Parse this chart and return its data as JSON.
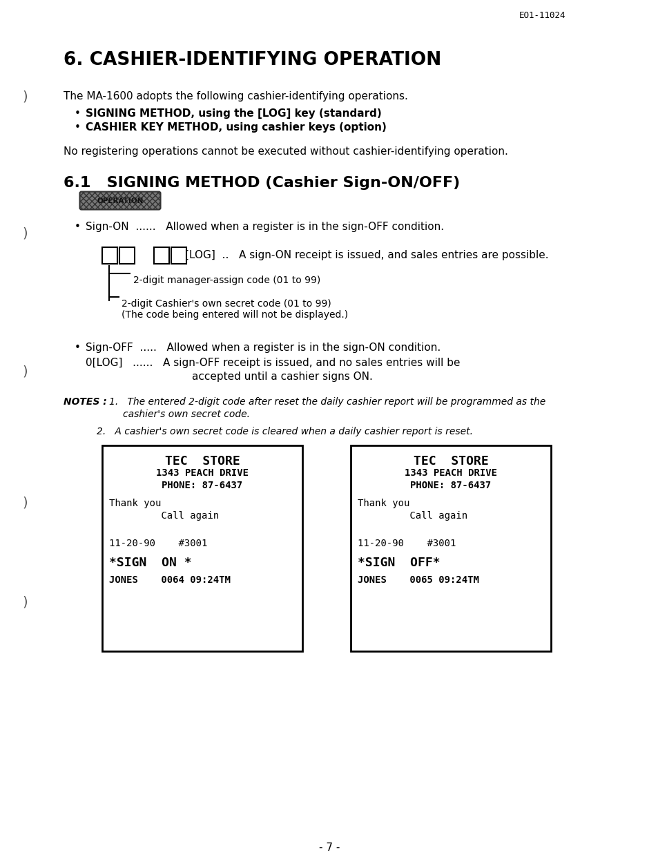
{
  "page_id": "EO1-11024",
  "bg_color": "#ffffff",
  "title": "6. CASHIER-IDENTIFYING OPERATION",
  "intro": "The MA-1600 adopts the following cashier-identifying operations.",
  "bullet1": "SIGNING METHOD, using the [LOG] key (standard)",
  "bullet2": "CASHIER KEY METHOD, using cashier keys (option)",
  "no_reg": "No registering operations cannot be executed without cashier-identifying operation.",
  "section": "6.1   SIGNING METHOD (Cashier Sign-ON/OFF)",
  "sign_on_text": "Sign-ON  ......   Allowed when a register is in the sign-OFF condition.",
  "log_text": "[LOG]  ..   A sign-ON receipt is issued, and sales entries are possible.",
  "mgr_code": "2-digit manager-assign code (01 to 99)",
  "cash_code": "2-digit Cashier's own secret code (01 to 99)",
  "cash_code2": "(The code being entered will not be displayed.)",
  "sign_off_text": "Sign-OFF  .....   Allowed when a register is in the sign-ON condition.",
  "olog1": "0[LOG]   ......   A sign-OFF receipt is issued, and no sales entries will be",
  "olog2": "accepted until a cashier signs ON.",
  "note1a": "The entered 2-digit code after reset the daily cashier report will be programmed as the",
  "note1b": "cashier's own secret code.",
  "note2": "A cashier's own secret code is cleared when a daily cashier report is reset.",
  "page_num": "- 7 -",
  "bracket_y": [
    130,
    328,
    528,
    718,
    862
  ],
  "receipt1": [
    {
      "t": "TEC  STORE",
      "bold": true,
      "cx": true,
      "fs": 13,
      "sp": 0
    },
    {
      "t": "1343 PEACH DRIVE",
      "bold": true,
      "cx": true,
      "fs": 10,
      "sp": 0
    },
    {
      "t": "PHONE: 87-6437",
      "bold": true,
      "cx": true,
      "fs": 10,
      "sp": 0
    },
    {
      "t": "",
      "bold": false,
      "cx": false,
      "fs": 10,
      "sp": 8
    },
    {
      "t": "Thank you",
      "bold": false,
      "cx": false,
      "fs": 10,
      "sp": 0
    },
    {
      "t": "         Call again",
      "bold": false,
      "cx": false,
      "fs": 10,
      "sp": 0
    },
    {
      "t": "",
      "bold": false,
      "cx": false,
      "fs": 10,
      "sp": 22
    },
    {
      "t": "11-20-90    #3001",
      "bold": false,
      "cx": false,
      "fs": 10,
      "sp": 0
    },
    {
      "t": "",
      "bold": false,
      "cx": false,
      "fs": 10,
      "sp": 8
    },
    {
      "t": "*SIGN  ON *",
      "bold": true,
      "cx": false,
      "fs": 13,
      "sp": 0
    },
    {
      "t": "",
      "bold": false,
      "cx": false,
      "fs": 10,
      "sp": 8
    },
    {
      "t": "JONES    0064 09:24TM",
      "bold": true,
      "cx": false,
      "fs": 10,
      "sp": 0
    }
  ],
  "receipt2": [
    {
      "t": "TEC  STORE",
      "bold": true,
      "cx": true,
      "fs": 13,
      "sp": 0
    },
    {
      "t": "1343 PEACH DRIVE",
      "bold": true,
      "cx": true,
      "fs": 10,
      "sp": 0
    },
    {
      "t": "PHONE: 87-6437",
      "bold": true,
      "cx": true,
      "fs": 10,
      "sp": 0
    },
    {
      "t": "",
      "bold": false,
      "cx": false,
      "fs": 10,
      "sp": 8
    },
    {
      "t": "Thank you",
      "bold": false,
      "cx": false,
      "fs": 10,
      "sp": 0
    },
    {
      "t": "         Call again",
      "bold": false,
      "cx": false,
      "fs": 10,
      "sp": 0
    },
    {
      "t": "",
      "bold": false,
      "cx": false,
      "fs": 10,
      "sp": 22
    },
    {
      "t": "11-20-90    #3001",
      "bold": false,
      "cx": false,
      "fs": 10,
      "sp": 0
    },
    {
      "t": "",
      "bold": false,
      "cx": false,
      "fs": 10,
      "sp": 8
    },
    {
      "t": "*SIGN  OFF*",
      "bold": true,
      "cx": false,
      "fs": 13,
      "sp": 0
    },
    {
      "t": "",
      "bold": false,
      "cx": false,
      "fs": 10,
      "sp": 8
    },
    {
      "t": "JONES    0065 09:24TM",
      "bold": true,
      "cx": false,
      "fs": 10,
      "sp": 0
    }
  ]
}
